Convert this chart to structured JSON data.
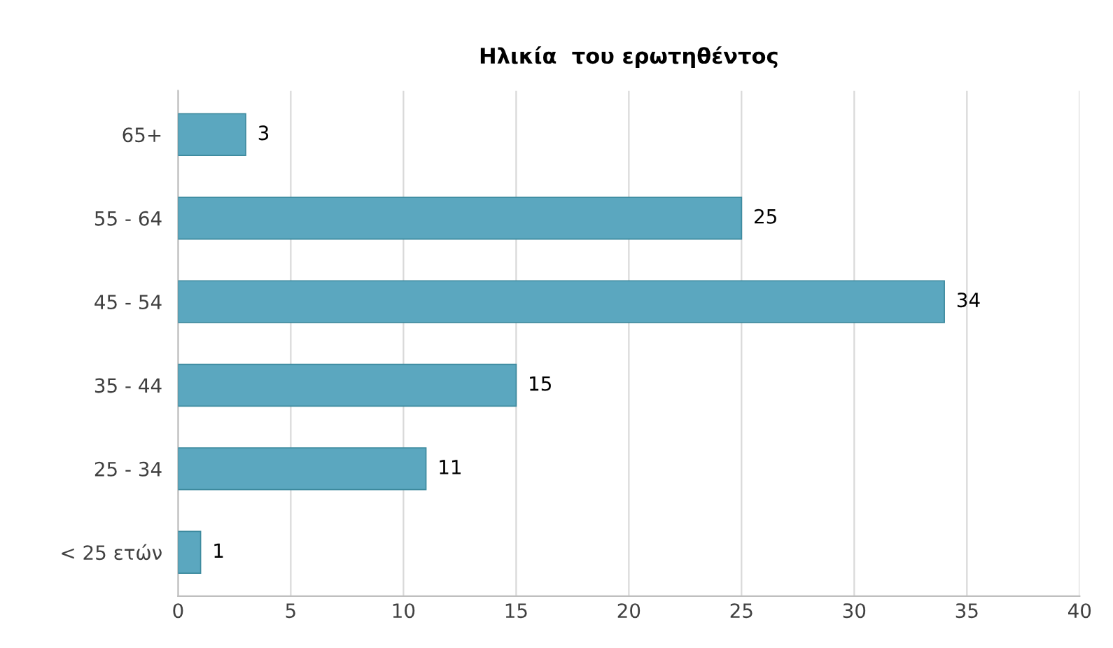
{
  "chart_data": {
    "type": "bar",
    "orientation": "horizontal",
    "title": "Ηλικία  του ερωτηθέντος",
    "categories": [
      "65+",
      "55 - 64",
      "45 - 54",
      "35 - 44",
      "25 - 34",
      "< 25 ετών"
    ],
    "values": [
      3,
      25,
      34,
      15,
      11,
      1
    ],
    "color": "#5ba7bf",
    "xlim": [
      0,
      40
    ],
    "xticks": [
      0,
      5,
      10,
      15,
      20,
      25,
      30,
      35,
      40
    ],
    "grid": "x",
    "data_labels": true
  }
}
